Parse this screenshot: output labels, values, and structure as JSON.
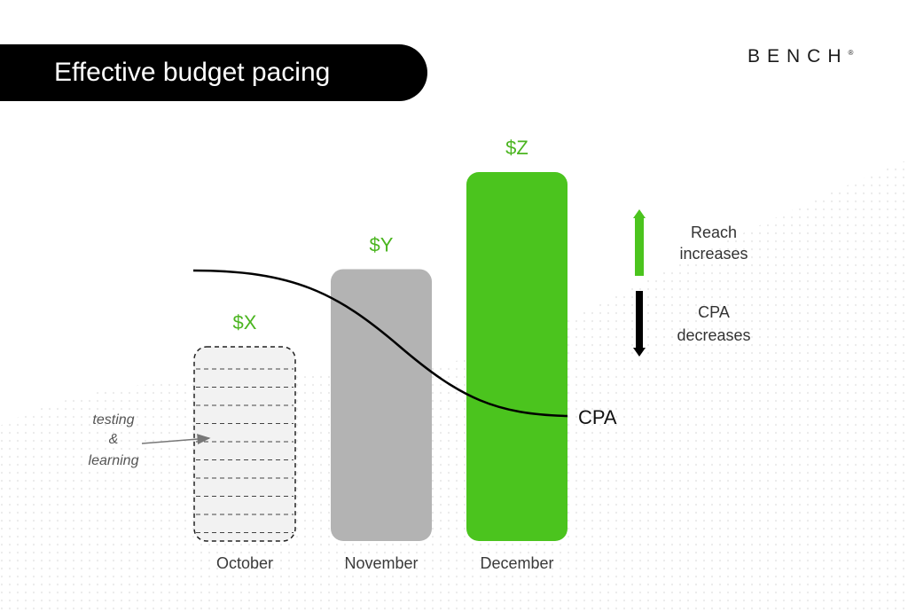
{
  "title": "Effective budget pacing",
  "logo": "BENCH",
  "legend": {
    "reach_line1": "Reach",
    "reach_line2": "increases",
    "cpa_line1": "CPA",
    "cpa_line2": "decreases"
  },
  "annotation": {
    "line1": "testing",
    "line2": "&",
    "line3": "learning"
  },
  "colors": {
    "accent_green": "#4bc41e",
    "bar_gray": "#b3b3b3",
    "dashed_bar_fill": "#f2f2f2",
    "title_bar": "#000000"
  },
  "chart_data": {
    "type": "bar",
    "categories": [
      "October",
      "November",
      "December"
    ],
    "data_labels": [
      "$X",
      "$Y",
      "$Z"
    ],
    "values": [
      1,
      1.4,
      1.9
    ],
    "bar_styles": [
      "dashed",
      "gray",
      "green"
    ],
    "line": {
      "name": "CPA",
      "trend": "decreasing"
    }
  }
}
